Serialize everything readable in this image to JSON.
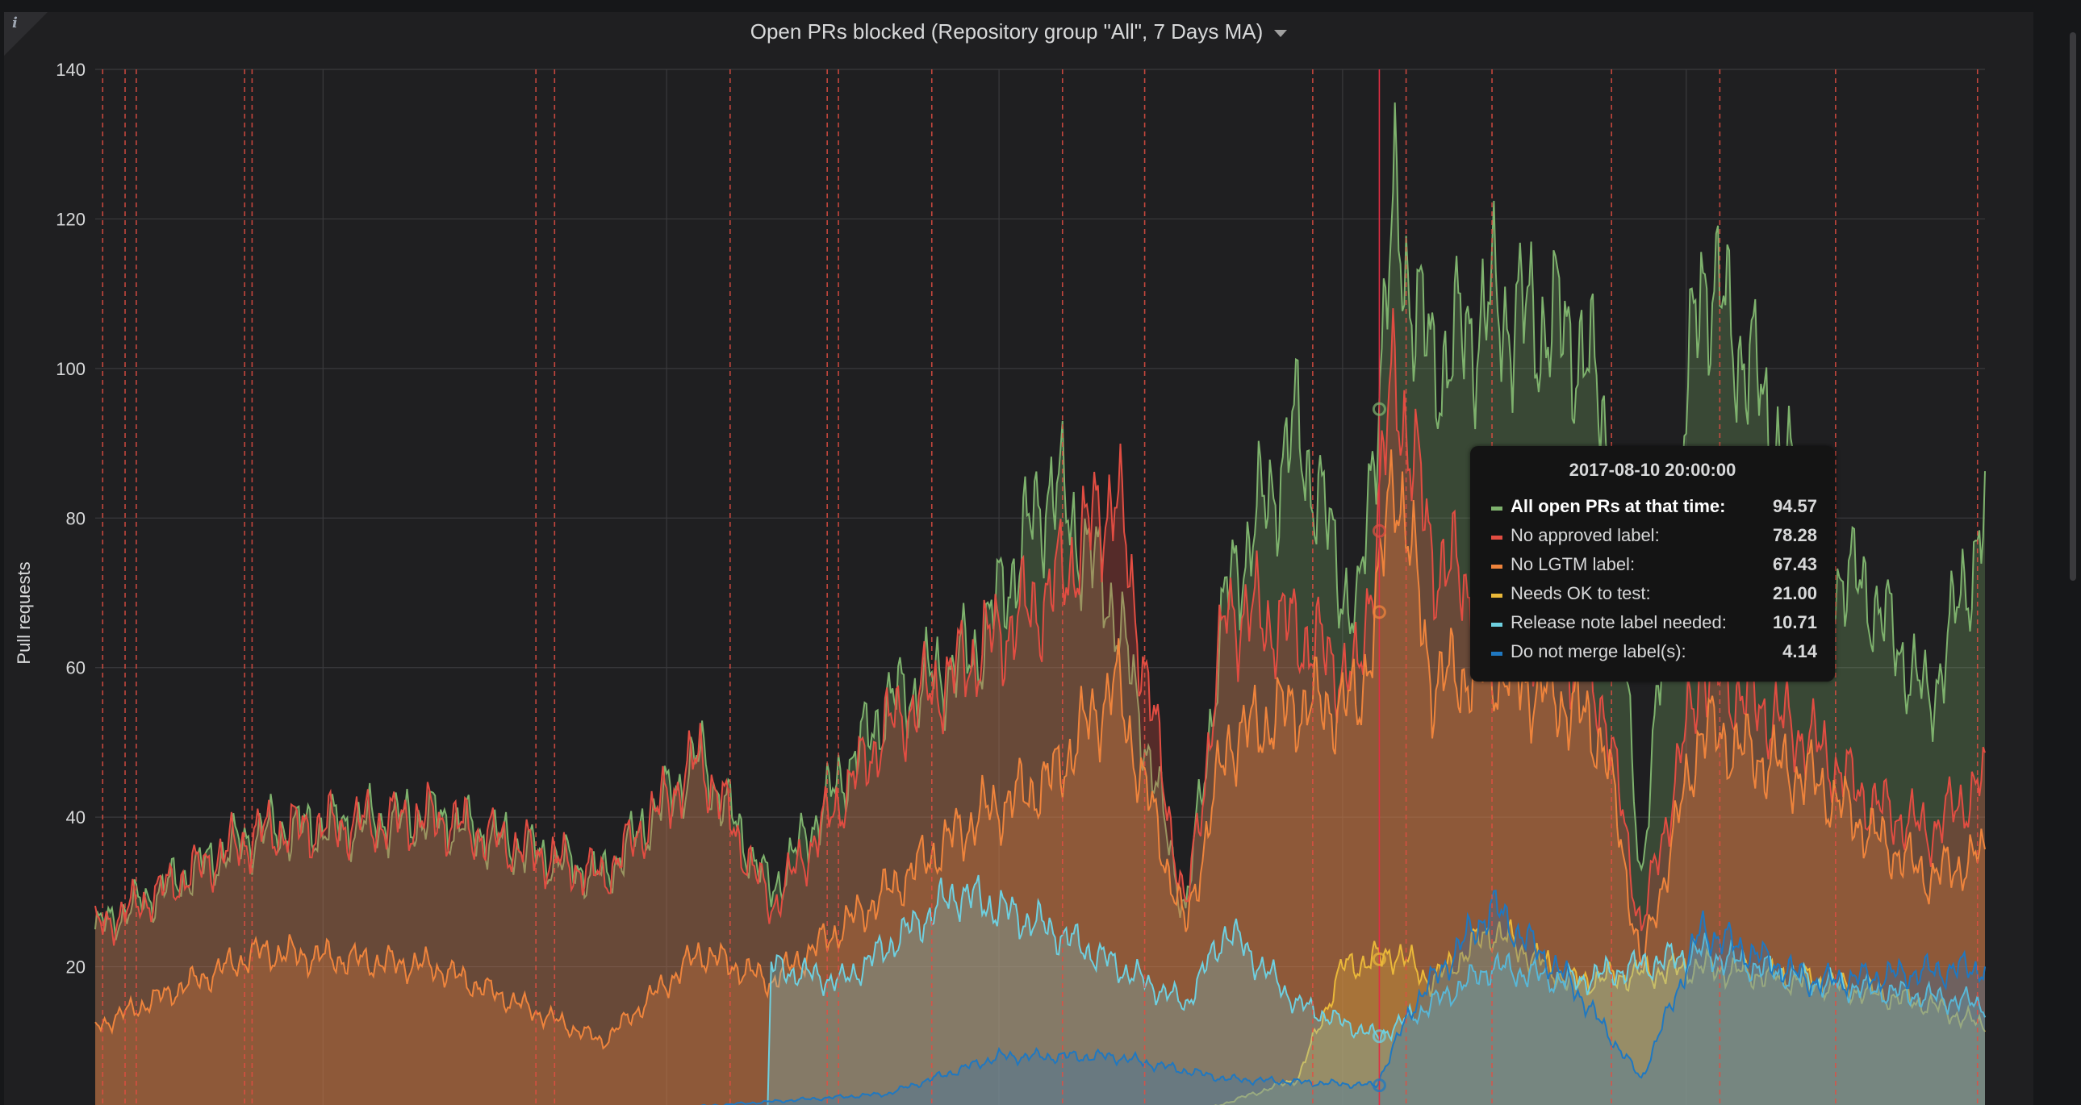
{
  "panel": {
    "title": "Open PRs blocked (Repository group \"All\", 7 Days MA)",
    "info_icon": "info-icon",
    "menu_icon": "caret-down-icon"
  },
  "chart_data": {
    "type": "area",
    "ylabel": "Pull requests",
    "ylim": [
      0,
      140
    ],
    "yticks": [
      20,
      40,
      60,
      80,
      100,
      120,
      140
    ],
    "grid": true,
    "x_range": [
      "2016-09-01",
      "2018-01-20"
    ],
    "series": [
      {
        "name": "All open PRs at that time:",
        "color": "#7eb26d",
        "x": [
          "2016-09-01",
          "2016-10-15",
          "2016-12-01",
          "2017-01-15",
          "2017-02-10",
          "2017-03-01",
          "2017-04-01",
          "2017-04-25",
          "2017-05-15",
          "2017-06-01",
          "2017-06-20",
          "2017-07-01",
          "2017-07-20",
          "2017-08-05",
          "2017-08-10",
          "2017-08-15",
          "2017-08-25",
          "2017-09-10",
          "2017-10-01",
          "2017-10-10",
          "2017-10-20",
          "2017-11-05",
          "2017-11-20",
          "2017-12-05",
          "2017-12-20",
          "2018-01-05",
          "2018-01-20"
        ],
        "values": [
          25,
          38,
          40,
          32,
          48,
          30,
          55,
          62,
          85,
          68,
          27,
          70,
          92,
          65,
          95,
          120,
          100,
          108,
          105,
          95,
          32,
          114,
          98,
          75,
          70,
          55,
          80
        ]
      },
      {
        "name": "No approved label:",
        "color": "#e24d42",
        "x": [
          "2016-09-01",
          "2016-10-15",
          "2016-12-01",
          "2017-01-15",
          "2017-02-10",
          "2017-03-01",
          "2017-04-01",
          "2017-04-25",
          "2017-05-15",
          "2017-06-01",
          "2017-06-20",
          "2017-07-01",
          "2017-07-20",
          "2017-08-05",
          "2017-08-10",
          "2017-08-15",
          "2017-08-25",
          "2017-09-10",
          "2017-10-01",
          "2017-10-10",
          "2017-10-20",
          "2017-11-05",
          "2017-11-20",
          "2017-12-05",
          "2017-12-20",
          "2018-01-05",
          "2018-01-20"
        ],
        "values": [
          25,
          38,
          40,
          32,
          48,
          28,
          52,
          62,
          70,
          84,
          27,
          68,
          65,
          58,
          78,
          100,
          75,
          68,
          62,
          55,
          25,
          60,
          55,
          50,
          42,
          38,
          45
        ]
      },
      {
        "name": "No LGTM label:",
        "color": "#ef843c",
        "x": [
          "2016-09-01",
          "2016-10-15",
          "2016-12-01",
          "2017-01-15",
          "2017-02-10",
          "2017-03-01",
          "2017-04-01",
          "2017-04-25",
          "2017-05-15",
          "2017-06-01",
          "2017-06-20",
          "2017-07-01",
          "2017-07-20",
          "2017-08-05",
          "2017-08-10",
          "2017-08-15",
          "2017-08-25",
          "2017-09-10",
          "2017-10-01",
          "2017-10-10",
          "2017-10-20",
          "2017-11-05",
          "2017-11-20",
          "2017-12-05",
          "2017-12-20",
          "2018-01-05",
          "2018-01-20"
        ],
        "values": [
          12,
          22,
          20,
          10,
          22,
          18,
          30,
          40,
          45,
          58,
          25,
          50,
          55,
          55,
          67,
          88,
          58,
          60,
          55,
          50,
          20,
          52,
          48,
          45,
          38,
          32,
          35
        ]
      },
      {
        "name": "Needs OK to test:",
        "color": "#eab839",
        "x": [
          "2016-09-01",
          "2017-06-20",
          "2017-07-20",
          "2017-08-01",
          "2017-08-10",
          "2017-08-15",
          "2017-08-25",
          "2017-09-10",
          "2017-10-01",
          "2017-11-05",
          "2017-12-05",
          "2018-01-05",
          "2018-01-20"
        ],
        "values": [
          0,
          0,
          5,
          20,
          21,
          22,
          18,
          25,
          18,
          20,
          18,
          15,
          12
        ]
      },
      {
        "name": "Release note label needed:",
        "color": "#6ed0e0",
        "x": [
          "2016-09-01",
          "2017-02-28",
          "2017-03-01",
          "2017-03-20",
          "2017-04-20",
          "2017-05-15",
          "2017-06-20",
          "2017-07-01",
          "2017-07-20",
          "2017-08-10",
          "2017-08-15",
          "2017-09-10",
          "2017-10-01",
          "2017-11-05",
          "2017-12-05",
          "2018-01-20"
        ],
        "values": [
          0,
          0,
          20,
          18,
          30,
          25,
          15,
          25,
          15,
          10.71,
          12,
          20,
          18,
          22,
          18,
          15
        ]
      },
      {
        "name": "Do not merge label(s):",
        "color": "#1f78c1",
        "x": [
          "2016-09-01",
          "2017-01-01",
          "2017-04-01",
          "2017-05-01",
          "2017-06-01",
          "2017-07-01",
          "2017-08-10",
          "2017-08-20",
          "2017-09-10",
          "2017-10-01",
          "2017-10-20",
          "2017-11-05",
          "2017-12-05",
          "2018-01-20"
        ],
        "values": [
          0,
          0,
          3,
          8,
          8,
          5,
          4.14,
          15,
          28,
          18,
          5,
          25,
          18,
          20
        ]
      }
    ],
    "annotation_dates": [
      "2016-09-03",
      "2016-09-09",
      "2016-09-12",
      "2016-10-11",
      "2016-10-13",
      "2016-12-28",
      "2017-01-02",
      "2017-02-18",
      "2017-03-16",
      "2017-03-19",
      "2017-04-13",
      "2017-05-18",
      "2017-06-09",
      "2017-07-24",
      "2017-08-18",
      "2017-09-10",
      "2017-10-12",
      "2017-11-10",
      "2017-12-11",
      "2018-01-18"
    ],
    "hover_x": "2017-08-10 20:00:00"
  },
  "tooltip": {
    "time": "2017-08-10 20:00:00",
    "rows": [
      {
        "label": "All open PRs at that time:",
        "value": "94.57",
        "color": "#7eb26d"
      },
      {
        "label": "No approved label:",
        "value": "78.28",
        "color": "#e24d42"
      },
      {
        "label": "No LGTM label:",
        "value": "67.43",
        "color": "#ef843c"
      },
      {
        "label": "Needs OK to test:",
        "value": "21.00",
        "color": "#eab839"
      },
      {
        "label": "Release note label needed:",
        "value": "10.71",
        "color": "#6ed0e0"
      },
      {
        "label": "Do not merge label(s):",
        "value": "4.14",
        "color": "#1f78c1"
      }
    ]
  }
}
